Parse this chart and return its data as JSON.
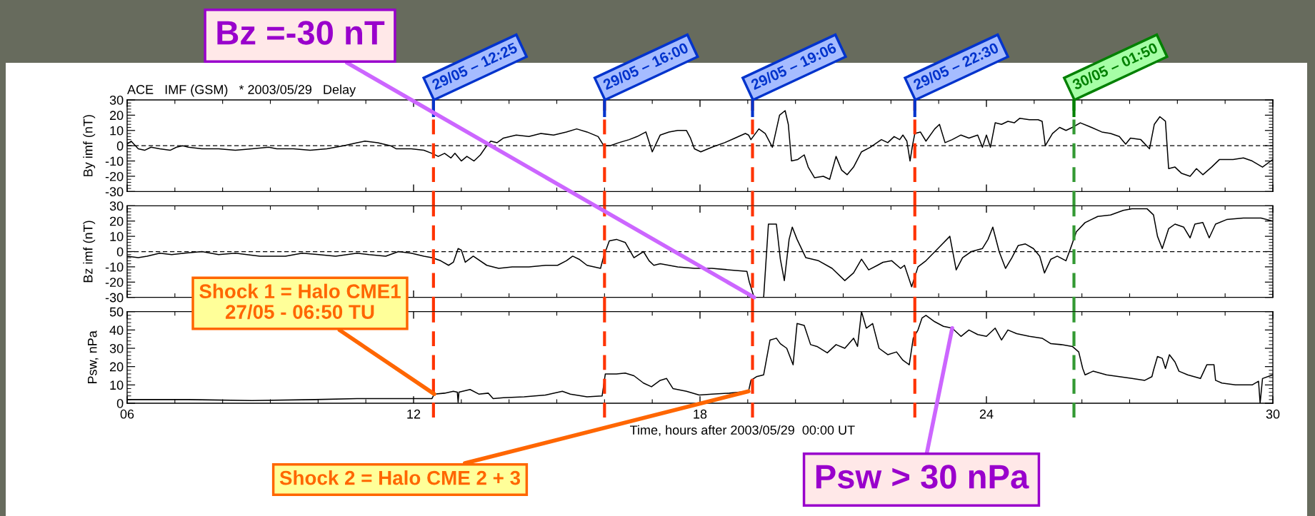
{
  "chart_data": [
    {
      "type": "line",
      "title": "ACE   IMF (GSM)   * 2003/05/29   Delay",
      "ylabel": "By imf (nT)",
      "xlim": [
        "2003-05-29T06:00",
        "2003-05-30T06:00"
      ],
      "xticks": [
        {
          "value": "2003-05-29T06:00",
          "label": null
        },
        {
          "value": "2003-05-29T12:00",
          "label": null
        },
        {
          "value": "2003-05-29T18:00",
          "label": null
        },
        {
          "value": "2003-05-30T00:00",
          "label": null
        },
        {
          "value": "2003-05-30T06:00",
          "label": null
        }
      ],
      "ylim": [
        -30,
        30
      ],
      "yticks": [
        -30,
        -20,
        -10,
        0,
        10,
        20,
        30
      ],
      "tick_labels": "y",
      "x": [
        "2003-05-29T06:00",
        "2003-05-29T06:05",
        "2003-05-29T06:14",
        "2003-05-29T06:22",
        "2003-05-29T06:30",
        "2003-05-29T06:41",
        "2003-05-29T06:54",
        "2003-05-29T07:02",
        "2003-05-29T07:10",
        "2003-05-29T07:17",
        "2003-05-29T07:34",
        "2003-05-29T07:55",
        "2003-05-29T08:16",
        "2003-05-29T08:37",
        "2003-05-29T08:58",
        "2003-05-29T09:08",
        "2003-05-29T09:29",
        "2003-05-29T09:50",
        "2003-05-29T10:11",
        "2003-05-29T10:32",
        "2003-05-29T10:49",
        "2003-05-29T10:59",
        "2003-05-29T11:15",
        "2003-05-29T11:31",
        "2003-05-29T11:38",
        "2003-05-29T11:57",
        "2003-05-29T12:13",
        "2003-05-29T12:23",
        "2003-05-29T12:31",
        "2003-05-29T12:39",
        "2003-05-29T12:47",
        "2003-05-29T12:52",
        "2003-05-29T13:00",
        "2003-05-29T13:07",
        "2003-05-29T13:16",
        "2003-05-29T13:24",
        "2003-05-29T13:32",
        "2003-05-29T13:37",
        "2003-05-29T13:45",
        "2003-05-29T13:53",
        "2003-05-29T14:09",
        "2003-05-29T14:25",
        "2003-05-29T14:40",
        "2003-05-29T14:56",
        "2003-05-29T15:12",
        "2003-05-29T15:25",
        "2003-05-29T15:38",
        "2003-05-29T15:52",
        "2003-05-29T15:59",
        "2003-05-29T16:07",
        "2003-05-29T16:18",
        "2003-05-29T16:31",
        "2003-05-29T16:41",
        "2003-05-29T16:52",
        "2003-05-29T17:00",
        "2003-05-29T17:10",
        "2003-05-29T17:21",
        "2003-05-29T17:32",
        "2003-05-29T17:43",
        "2003-05-29T17:48",
        "2003-05-29T17:53",
        "2003-05-29T18:01",
        "2003-05-29T18:15",
        "2003-05-29T18:31",
        "2003-05-29T18:44",
        "2003-05-29T18:57",
        "2003-05-29T19:01",
        "2003-05-29T19:04",
        "2003-05-29T19:14",
        "2003-05-29T19:22",
        "2003-05-29T19:31",
        "2003-05-29T19:40",
        "2003-05-29T19:47",
        "2003-05-29T19:51",
        "2003-05-29T19:55",
        "2003-05-29T20:03",
        "2003-05-29T20:11",
        "2003-05-29T20:16",
        "2003-05-29T20:24",
        "2003-05-29T20:35",
        "2003-05-29T20:43",
        "2003-05-29T20:51",
        "2003-05-29T20:58",
        "2003-05-29T21:05",
        "2003-05-29T21:13",
        "2003-05-29T21:23",
        "2003-05-29T21:34",
        "2003-05-29T21:48",
        "2003-05-29T21:56",
        "2003-05-29T22:04",
        "2003-05-29T22:11",
        "2003-05-29T22:15",
        "2003-05-29T22:20",
        "2003-05-29T22:24",
        "2003-05-29T22:27",
        "2003-05-29T22:30",
        "2003-05-29T22:37",
        "2003-05-29T22:44",
        "2003-05-29T22:55",
        "2003-05-29T23:01",
        "2003-05-29T23:08",
        "2003-05-29T23:17",
        "2003-05-29T23:28",
        "2003-05-29T23:38",
        "2003-05-29T23:49",
        "2003-05-29T23:55",
        "2003-05-30T00:00",
        "2003-05-30T00:05",
        "2003-05-30T00:11",
        "2003-05-30T00:19",
        "2003-05-30T00:27",
        "2003-05-30T00:35",
        "2003-05-30T00:42",
        "2003-05-30T00:54",
        "2003-05-30T01:05",
        "2003-05-30T01:10",
        "2003-05-30T01:14",
        "2003-05-30T01:23",
        "2003-05-30T01:32",
        "2003-05-30T01:40",
        "2003-05-30T01:48",
        "2003-05-30T01:58",
        "2003-05-30T02:12",
        "2003-05-30T02:25",
        "2003-05-30T02:36",
        "2003-05-30T02:47",
        "2003-05-30T02:55",
        "2003-05-30T03:01",
        "2003-05-30T03:14",
        "2003-05-30T03:25",
        "2003-05-30T03:31",
        "2003-05-30T03:38",
        "2003-05-30T03:45",
        "2003-05-30T03:49",
        "2003-05-30T03:57",
        "2003-05-30T04:05",
        "2003-05-30T04:16",
        "2003-05-30T04:24",
        "2003-05-30T04:32",
        "2003-05-30T04:43",
        "2003-05-30T04:53",
        "2003-05-30T05:10",
        "2003-05-30T05:23",
        "2003-05-30T05:34",
        "2003-05-30T05:47",
        "2003-05-30T06:00"
      ],
      "series": [
        {
          "color": "#000000",
          "values": [
            1,
            3,
            -2,
            -3,
            -1,
            -2,
            -3,
            -1,
            0,
            -1,
            -2,
            -2,
            -3,
            -2,
            -1,
            -2,
            -2,
            -3,
            -2,
            0,
            2,
            3,
            2,
            0,
            -2,
            -2,
            -3,
            -5,
            -7,
            -5,
            -8,
            -5,
            -10,
            -7,
            -10,
            -6,
            0,
            3,
            2,
            5,
            7,
            6,
            8,
            7,
            9,
            11,
            9,
            6,
            0,
            0,
            2,
            4,
            6,
            9,
            -4,
            7,
            9,
            10,
            10,
            5,
            -2,
            -4,
            -1,
            2,
            5,
            8,
            7,
            4,
            11,
            8,
            -1,
            20,
            23,
            14,
            -10,
            -9,
            -6,
            -14,
            -21,
            -20,
            -22,
            -7,
            -16,
            -19,
            -14,
            -4,
            -1,
            4,
            2,
            6,
            4,
            7,
            3,
            -10,
            0,
            8,
            9,
            3,
            11,
            14,
            2,
            4,
            7,
            5,
            7,
            -1,
            7,
            -1,
            15,
            14,
            16,
            15,
            18,
            17,
            17,
            16,
            0,
            8,
            12,
            10,
            12,
            15,
            12,
            9,
            8,
            6,
            1,
            5,
            4,
            -2,
            14,
            19,
            16,
            -15,
            -14,
            -18,
            -20,
            -15,
            -19,
            -14,
            -9,
            -9,
            -8,
            -10,
            -14,
            -9
          ]
        }
      ],
      "ref_lines": [
        {
          "axis": "y",
          "value": 0,
          "color": "#000000",
          "line_style": "dashed"
        },
        {
          "axis": "x",
          "value": "2003-05-29T12:25",
          "color": "#ff3300",
          "line_style": "dashed"
        },
        {
          "axis": "x",
          "value": "2003-05-29T16:00",
          "color": "#ff3300",
          "line_style": "dashed"
        },
        {
          "axis": "x",
          "value": "2003-05-29T19:06",
          "color": "#ff3300",
          "line_style": "dashed"
        },
        {
          "axis": "x",
          "value": "2003-05-29T22:30",
          "color": "#ff3300",
          "line_style": "dashed"
        },
        {
          "axis": "x",
          "value": "2003-05-30T01:50",
          "color": "#339933",
          "line_style": "dashed"
        },
        {
          "axis": "x",
          "value": "2003-05-29T12:25",
          "label": "29/05 – 12:25",
          "color": "#0033cc",
          "line_style": "solid"
        },
        {
          "axis": "x",
          "value": "2003-05-29T16:00",
          "label": "29/05 – 16:00",
          "color": "#0033cc",
          "line_style": "solid"
        },
        {
          "axis": "x",
          "value": "2003-05-29T19:06",
          "label": "29/05 – 19:06",
          "color": "#0033cc",
          "line_style": "solid"
        },
        {
          "axis": "x",
          "value": "2003-05-29T22:30",
          "label": "29/05 – 22:30",
          "color": "#0033cc",
          "line_style": "solid"
        },
        {
          "axis": "x",
          "value": "2003-05-30T01:50",
          "label": "30/05 – 01:50",
          "color": "#008000",
          "line_style": "solid"
        }
      ]
    },
    {
      "type": "line",
      "ylabel": "Bz imf (nT)",
      "xlim": [
        "2003-05-29T06:00",
        "2003-05-30T06:00"
      ],
      "xticks": [
        {
          "value": "2003-05-29T06:00",
          "label": null
        },
        {
          "value": "2003-05-29T12:00",
          "label": null
        },
        {
          "value": "2003-05-29T18:00",
          "label": null
        },
        {
          "value": "2003-05-30T00:00",
          "label": null
        },
        {
          "value": "2003-05-30T06:00",
          "label": null
        }
      ],
      "ylim": [
        -30,
        30
      ],
      "yticks": [
        -30,
        -20,
        -10,
        0,
        10,
        20,
        30
      ],
      "tick_labels": "y",
      "x": [
        "2003-05-29T06:00",
        "2003-05-29T06:14",
        "2003-05-29T06:25",
        "2003-05-29T06:41",
        "2003-05-29T06:56",
        "2003-05-29T07:12",
        "2003-05-29T07:34",
        "2003-05-29T07:55",
        "2003-05-29T08:16",
        "2003-05-29T08:47",
        "2003-05-29T09:19",
        "2003-05-29T09:40",
        "2003-05-29T10:01",
        "2003-05-29T10:22",
        "2003-05-29T10:49",
        "2003-05-29T11:04",
        "2003-05-29T11:25",
        "2003-05-29T11:41",
        "2003-05-29T11:57",
        "2003-05-29T12:13",
        "2003-05-29T12:23",
        "2003-05-29T12:34",
        "2003-05-29T12:44",
        "2003-05-29T12:50",
        "2003-05-29T12:56",
        "2003-05-29T13:00",
        "2003-05-29T13:05",
        "2003-05-29T13:15",
        "2003-05-29T13:32",
        "2003-05-29T13:47",
        "2003-05-29T14:04",
        "2003-05-29T14:25",
        "2003-05-29T14:46",
        "2003-05-29T15:01",
        "2003-05-29T15:12",
        "2003-05-29T15:20",
        "2003-05-29T15:28",
        "2003-05-29T15:38",
        "2003-05-29T15:55",
        "2003-05-29T15:59",
        "2003-05-29T16:06",
        "2003-05-29T16:15",
        "2003-05-29T16:26",
        "2003-05-29T16:37",
        "2003-05-29T16:49",
        "2003-05-29T16:56",
        "2003-05-29T17:02",
        "2003-05-29T17:10",
        "2003-05-29T17:21",
        "2003-05-29T17:32",
        "2003-05-29T17:53",
        "2003-05-29T18:15",
        "2003-05-29T18:37",
        "2003-05-29T18:59",
        "2003-05-29T19:02",
        "2003-05-29T19:08",
        "2003-05-29T19:20",
        "2003-05-29T19:26",
        "2003-05-29T19:36",
        "2003-05-29T19:41",
        "2003-05-29T19:46",
        "2003-05-29T19:52",
        "2003-05-29T19:56",
        "2003-05-29T20:02",
        "2003-05-29T20:13",
        "2003-05-29T20:29",
        "2003-05-29T20:46",
        "2003-05-29T21:02",
        "2003-05-29T21:13",
        "2003-05-29T21:23",
        "2003-05-29T21:32",
        "2003-05-29T21:43",
        "2003-05-29T21:50",
        "2003-05-29T22:01",
        "2003-05-29T22:12",
        "2003-05-29T22:17",
        "2003-05-29T22:26",
        "2003-05-29T22:34",
        "2003-05-29T22:44",
        "2003-05-29T23:01",
        "2003-05-29T23:14",
        "2003-05-29T23:22",
        "2003-05-29T23:30",
        "2003-05-29T23:41",
        "2003-05-29T23:55",
        "2003-05-30T00:02",
        "2003-05-30T00:08",
        "2003-05-30T00:16",
        "2003-05-30T00:24",
        "2003-05-30T00:32",
        "2003-05-30T00:40",
        "2003-05-30T00:49",
        "2003-05-30T00:59",
        "2003-05-30T01:07",
        "2003-05-30T01:13",
        "2003-05-30T01:21",
        "2003-05-30T01:29",
        "2003-05-30T01:40",
        "2003-05-30T01:45",
        "2003-05-30T01:53",
        "2003-05-30T02:04",
        "2003-05-30T02:20",
        "2003-05-30T02:36",
        "2003-05-30T02:52",
        "2003-05-30T03:03",
        "2003-05-30T03:22",
        "2003-05-30T03:30",
        "2003-05-30T03:35",
        "2003-05-30T03:41",
        "2003-05-30T03:49",
        "2003-05-30T03:57",
        "2003-05-30T04:08",
        "2003-05-30T04:16",
        "2003-05-30T04:22",
        "2003-05-30T04:32",
        "2003-05-30T04:40",
        "2003-05-30T04:48",
        "2003-05-30T05:02",
        "2003-05-30T05:23",
        "2003-05-30T05:45",
        "2003-05-30T06:00"
      ],
      "series": [
        {
          "color": "#000000",
          "values": [
            -3,
            -4,
            -3,
            -1,
            -2,
            -1,
            0,
            -2,
            -1,
            -3,
            -3,
            -1,
            -2,
            -3,
            -1,
            -2,
            -3,
            0,
            -1,
            -3,
            -4,
            -6,
            -9,
            -7,
            2,
            1,
            -7,
            -3,
            -9,
            -11,
            -10,
            -10,
            -9,
            -9,
            -6,
            -3,
            -5,
            -9,
            -11,
            -3,
            7,
            8,
            6,
            -4,
            0,
            -6,
            -9,
            -8,
            -9,
            -10,
            -11,
            -11,
            -12,
            -13,
            -20,
            -30,
            -30,
            18,
            18,
            -5,
            -19,
            8,
            16,
            8,
            -4,
            -6,
            -11,
            -19,
            -14,
            -5,
            -12,
            -9,
            -7,
            -6,
            -11,
            -9,
            -23,
            -10,
            -6,
            3,
            10,
            -12,
            -4,
            0,
            2,
            8,
            16,
            0,
            -11,
            -4,
            4,
            5,
            2,
            -3,
            -14,
            -5,
            -3,
            -6,
            1,
            13,
            19,
            23,
            24,
            27,
            28,
            28,
            24,
            10,
            2,
            15,
            18,
            16,
            9,
            18,
            19,
            9,
            18,
            21,
            22,
            22,
            20
          ]
        }
      ],
      "ref_lines": [
        {
          "axis": "y",
          "value": 0,
          "color": "#000000",
          "line_style": "dashed"
        },
        {
          "axis": "x",
          "value": "2003-05-29T12:25",
          "color": "#ff3300",
          "line_style": "dashed"
        },
        {
          "axis": "x",
          "value": "2003-05-29T16:00",
          "color": "#ff3300",
          "line_style": "dashed"
        },
        {
          "axis": "x",
          "value": "2003-05-29T19:06",
          "color": "#ff3300",
          "line_style": "dashed"
        },
        {
          "axis": "x",
          "value": "2003-05-29T22:30",
          "color": "#ff3300",
          "line_style": "dashed"
        },
        {
          "axis": "x",
          "value": "2003-05-30T01:50",
          "color": "#339933",
          "line_style": "dashed"
        }
      ],
      "annotations": [
        {
          "text": "Bz =-30 nT",
          "x": "2003-05-29T19:08",
          "y": -30
        }
      ]
    },
    {
      "type": "line",
      "xlabel": "Time, hours after 2003/05/29  00:00 UT",
      "ylabel": "Psw, nPa",
      "xlim": [
        "2003-05-29T06:00",
        "2003-05-30T06:00"
      ],
      "xticks": [
        {
          "value": "2003-05-29T06:00",
          "label": "06"
        },
        {
          "value": "2003-05-29T12:00",
          "label": "12"
        },
        {
          "value": "2003-05-29T18:00",
          "label": "18"
        },
        {
          "value": "2003-05-30T00:00",
          "label": "24"
        },
        {
          "value": "2003-05-30T06:00",
          "label": "30"
        }
      ],
      "ylim": [
        0,
        50
      ],
      "yticks": [
        0,
        10,
        20,
        30,
        40,
        50
      ],
      "x": [
        "2003-05-29T06:00",
        "2003-05-29T07:17",
        "2003-05-29T08:37",
        "2003-05-29T09:56",
        "2003-05-29T10:49",
        "2003-05-29T11:41",
        "2003-05-29T12:23",
        "2003-05-29T12:26",
        "2003-05-29T12:39",
        "2003-05-29T12:50",
        "2003-05-29T12:55",
        "2003-05-29T12:56",
        "2003-05-29T12:57",
        "2003-05-29T13:11",
        "2003-05-29T13:22",
        "2003-05-29T13:34",
        "2003-05-29T13:40",
        "2003-05-29T13:53",
        "2003-05-29T14:19",
        "2003-05-29T14:46",
        "2003-05-29T15:07",
        "2003-05-29T15:17",
        "2003-05-29T15:38",
        "2003-05-29T15:57",
        "2003-05-29T16:01",
        "2003-05-29T16:15",
        "2003-05-29T16:26",
        "2003-05-29T16:37",
        "2003-05-29T16:49",
        "2003-05-29T16:59",
        "2003-05-29T17:10",
        "2003-05-29T17:18",
        "2003-05-29T17:26",
        "2003-05-29T17:43",
        "2003-05-29T17:59",
        "2003-05-29T18:15",
        "2003-05-29T18:37",
        "2003-05-29T19:01",
        "2003-05-29T19:04",
        "2003-05-29T19:11",
        "2003-05-29T19:20",
        "2003-05-29T19:28",
        "2003-05-29T19:36",
        "2003-05-29T19:41",
        "2003-05-29T19:49",
        "2003-05-29T19:57",
        "2003-05-29T20:02",
        "2003-05-29T20:11",
        "2003-05-29T20:19",
        "2003-05-29T20:27",
        "2003-05-29T20:40",
        "2003-05-29T20:51",
        "2003-05-29T21:02",
        "2003-05-29T21:13",
        "2003-05-29T21:18",
        "2003-05-29T21:23",
        "2003-05-29T21:29",
        "2003-05-29T21:37",
        "2003-05-29T21:45",
        "2003-05-29T21:56",
        "2003-05-29T22:07",
        "2003-05-29T22:15",
        "2003-05-29T22:23",
        "2003-05-29T22:28",
        "2003-05-29T22:34",
        "2003-05-29T22:39",
        "2003-05-29T22:44",
        "2003-05-29T22:55",
        "2003-05-29T23:06",
        "2003-05-29T23:17",
        "2003-05-29T23:28",
        "2003-05-29T23:38",
        "2003-05-29T23:49",
        "2003-05-30T00:00",
        "2003-05-30T00:11",
        "2003-05-30T00:19",
        "2003-05-30T00:27",
        "2003-05-30T00:38",
        "2003-05-30T00:54",
        "2003-05-30T01:10",
        "2003-05-30T01:21",
        "2003-05-30T01:34",
        "2003-05-30T01:48",
        "2003-05-30T01:56",
        "2003-05-30T02:01",
        "2003-05-30T02:04",
        "2003-05-30T02:14",
        "2003-05-30T02:31",
        "2003-05-30T02:47",
        "2003-05-30T03:03",
        "2003-05-30T03:19",
        "2003-05-30T03:28",
        "2003-05-30T03:30",
        "2003-05-30T03:35",
        "2003-05-30T03:41",
        "2003-05-30T03:45",
        "2003-05-30T03:50",
        "2003-05-30T03:57",
        "2003-05-30T04:02",
        "2003-05-30T04:13",
        "2003-05-30T04:29",
        "2003-05-30T04:37",
        "2003-05-30T04:46",
        "2003-05-30T04:48",
        "2003-05-30T04:56",
        "2003-05-30T05:13",
        "2003-05-30T05:34",
        "2003-05-30T05:42",
        "2003-05-30T05:44",
        "2003-05-30T05:47",
        "2003-05-30T06:00"
      ],
      "series": [
        {
          "color": "#000000",
          "values": [
            2,
            2,
            1.5,
            2,
            2.5,
            2.5,
            2.5,
            5,
            5.5,
            6.5,
            6,
            0.5,
            6,
            7.5,
            5,
            5.5,
            2.5,
            3,
            3.5,
            4.5,
            6.5,
            5,
            3.5,
            4,
            16,
            16,
            16.5,
            15,
            11,
            9,
            12.5,
            13.5,
            8,
            6.5,
            4.5,
            5,
            5.5,
            6.5,
            12.5,
            14.5,
            15.5,
            34.5,
            35.5,
            32.5,
            30,
            21,
            43.5,
            42.5,
            32,
            31,
            27.5,
            32,
            30,
            35.5,
            31,
            50,
            41,
            43.5,
            30,
            26.5,
            28,
            23.5,
            21,
            35.5,
            40,
            46.5,
            48,
            44.5,
            42,
            41,
            36.5,
            40,
            37.5,
            36.5,
            41,
            34.5,
            40,
            38,
            36.5,
            35.5,
            32.5,
            32,
            31,
            28,
            19,
            15.5,
            17.5,
            15.5,
            14.5,
            13.5,
            12.5,
            14.5,
            18,
            25.5,
            24.5,
            19,
            26.5,
            22.5,
            17.5,
            15.5,
            13.5,
            21,
            21,
            12.5,
            11,
            10,
            10,
            12,
            0,
            13.5,
            15.5
          ]
        }
      ],
      "ref_lines": [
        {
          "axis": "x",
          "value": "2003-05-29T12:25",
          "color": "#ff3300",
          "line_style": "dashed"
        },
        {
          "axis": "x",
          "value": "2003-05-29T16:00",
          "color": "#ff3300",
          "line_style": "dashed"
        },
        {
          "axis": "x",
          "value": "2003-05-29T19:06",
          "color": "#ff3300",
          "line_style": "dashed"
        },
        {
          "axis": "x",
          "value": "2003-05-29T22:30",
          "color": "#ff3300",
          "line_style": "dashed"
        },
        {
          "axis": "x",
          "value": "2003-05-30T01:50",
          "color": "#339933",
          "line_style": "dashed"
        }
      ],
      "annotations": [
        {
          "text": "Shock 1 = Halo CME1\n27/05 - 06:50 TU",
          "x": "2003-05-29T12:26",
          "y": 5
        },
        {
          "text": "Shock 2 = Halo CME 2 + 3",
          "x": "2003-05-29T19:01",
          "y": 6.5
        },
        {
          "text": "Psw > 30 nPa",
          "x": "2003-05-29T23:17",
          "y": 41
        }
      ]
    }
  ]
}
